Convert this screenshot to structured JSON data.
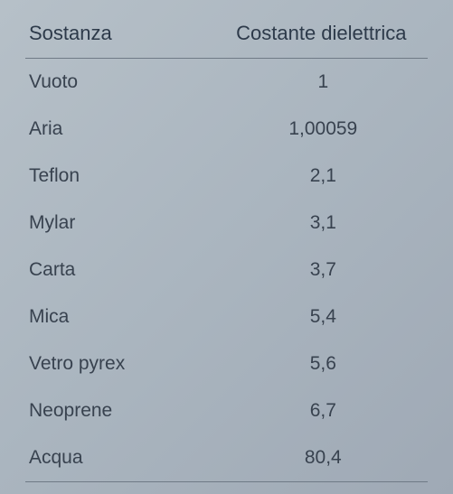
{
  "table": {
    "type": "table",
    "background_gradient": [
      "#b6c0c8",
      "#aab5bf",
      "#9fa9b5"
    ],
    "text_color": "#2d3a4a",
    "border_color": "#6f7a86",
    "header_fontsize": 22,
    "cell_fontsize": 21,
    "columns": [
      {
        "label": "Sostanza",
        "align": "left"
      },
      {
        "label": "Costante dielettrica",
        "align": "center"
      }
    ],
    "rows": [
      {
        "substance": "Vuoto",
        "value": "1"
      },
      {
        "substance": "Aria",
        "value": "1,00059"
      },
      {
        "substance": "Teflon",
        "value": "2,1"
      },
      {
        "substance": "Mylar",
        "value": "3,1"
      },
      {
        "substance": "Carta",
        "value": "3,7"
      },
      {
        "substance": "Mica",
        "value": "5,4"
      },
      {
        "substance": "Vetro pyrex",
        "value": "5,6"
      },
      {
        "substance": "Neoprene",
        "value": "6,7"
      },
      {
        "substance": "Acqua",
        "value": "80,4"
      }
    ]
  }
}
